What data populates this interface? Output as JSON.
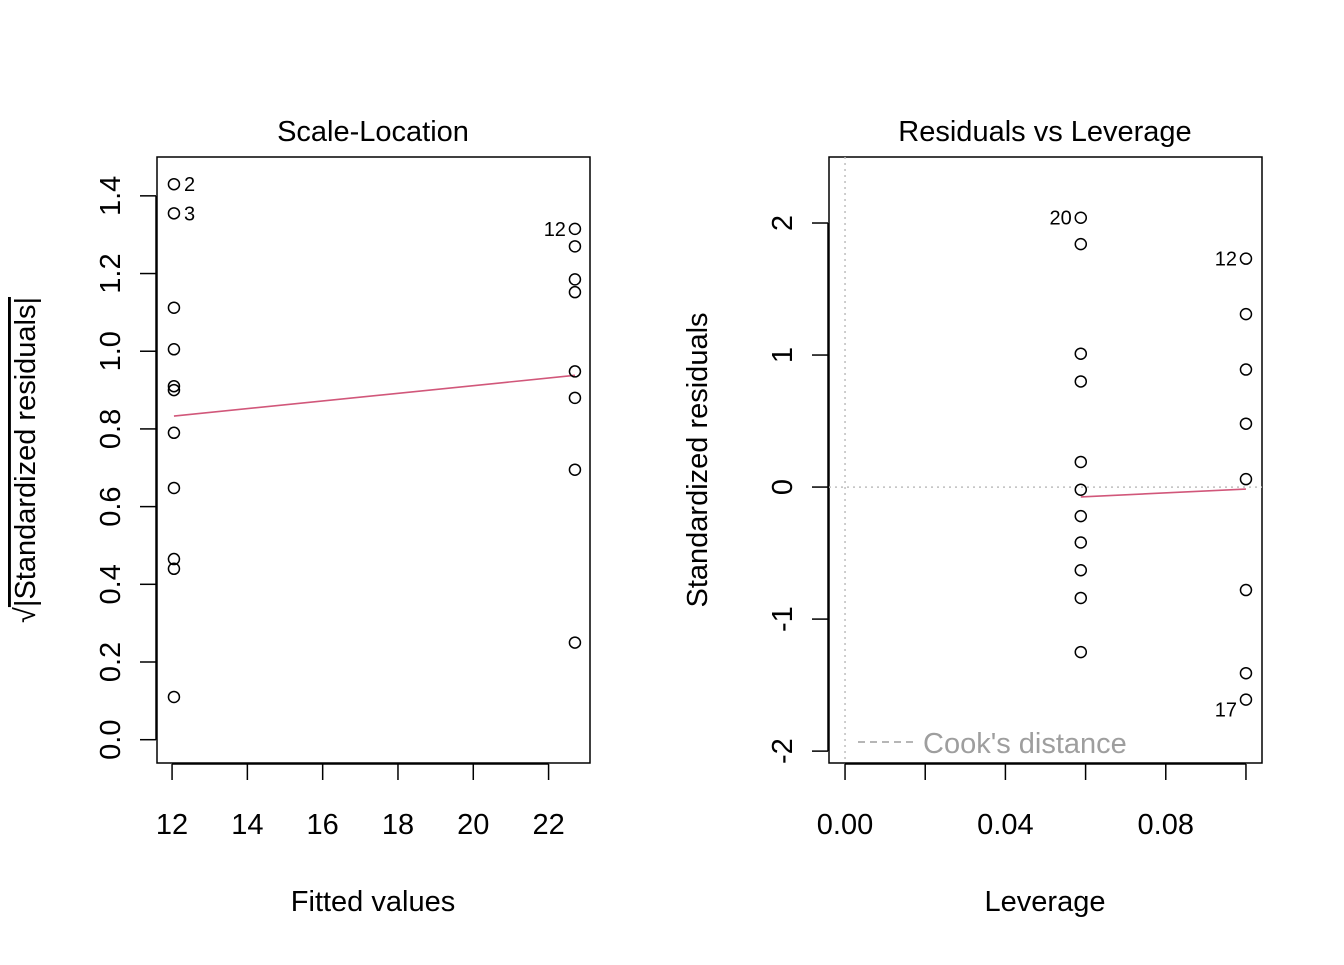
{
  "colors": {
    "smoother": "#d1577a",
    "reference": "#bebebe",
    "points": "#000000",
    "legend_text": "#9e9e9e"
  },
  "chart_data": [
    {
      "type": "scatter",
      "title": "Scale-Location",
      "xlabel": "Fitted values",
      "ylabel": "√|Standardized residuals|",
      "ylabel_radical": "√",
      "ylabel_body": "|Standardized residuals|",
      "xlim": [
        11.6,
        23.1
      ],
      "ylim": [
        -0.06,
        1.5
      ],
      "xticks": [
        12,
        14,
        16,
        18,
        20,
        22
      ],
      "xtick_labels": [
        "12",
        "14",
        "16",
        "18",
        "20",
        "22"
      ],
      "yticks": [
        0,
        0.2,
        0.4,
        0.6,
        0.8,
        1.0,
        1.2,
        1.4
      ],
      "ytick_labels": [
        "0.0",
        "0.2",
        "0.4",
        "0.6",
        "0.8",
        "1.0",
        "1.2",
        "1.4"
      ],
      "points": [
        {
          "x": 12.05,
          "y": 1.43,
          "label": "2"
        },
        {
          "x": 12.05,
          "y": 1.355,
          "label": "3"
        },
        {
          "x": 12.05,
          "y": 1.112
        },
        {
          "x": 12.05,
          "y": 1.005
        },
        {
          "x": 12.05,
          "y": 0.91
        },
        {
          "x": 12.05,
          "y": 0.9
        },
        {
          "x": 12.05,
          "y": 0.79
        },
        {
          "x": 12.05,
          "y": 0.648
        },
        {
          "x": 12.05,
          "y": 0.465
        },
        {
          "x": 12.05,
          "y": 0.44
        },
        {
          "x": 12.05,
          "y": 0.11
        },
        {
          "x": 22.7,
          "y": 1.315,
          "label": "12"
        },
        {
          "x": 22.7,
          "y": 1.27
        },
        {
          "x": 22.7,
          "y": 1.185
        },
        {
          "x": 22.7,
          "y": 1.152
        },
        {
          "x": 22.7,
          "y": 0.948
        },
        {
          "x": 22.7,
          "y": 0.88
        },
        {
          "x": 22.7,
          "y": 0.695
        },
        {
          "x": 22.7,
          "y": 0.25
        }
      ],
      "smoother": [
        [
          12.05,
          0.833
        ],
        [
          22.7,
          0.938
        ]
      ],
      "grid": false
    },
    {
      "type": "scatter",
      "title": "Residuals vs Leverage",
      "xlabel": "Leverage",
      "ylabel": "Standardized residuals",
      "xlim": [
        -0.004,
        0.104
      ],
      "ylim": [
        -2.09,
        2.5
      ],
      "xticks": [
        0,
        0.02,
        0.04,
        0.06,
        0.08,
        0.1
      ],
      "xtick_labels": [
        "0.00",
        "",
        "0.04",
        "",
        "0.08",
        ""
      ],
      "yticks": [
        -2,
        -1,
        0,
        1,
        2
      ],
      "ytick_labels": [
        "-2",
        "-1",
        "0",
        "1",
        "2"
      ],
      "points": [
        {
          "x": 0.0588,
          "y": 2.04,
          "label": "20"
        },
        {
          "x": 0.0588,
          "y": 1.84
        },
        {
          "x": 0.0588,
          "y": 1.01
        },
        {
          "x": 0.0588,
          "y": 0.8
        },
        {
          "x": 0.0588,
          "y": 0.19
        },
        {
          "x": 0.0588,
          "y": -0.02
        },
        {
          "x": 0.0588,
          "y": -0.22
        },
        {
          "x": 0.0588,
          "y": -0.42
        },
        {
          "x": 0.0588,
          "y": -0.63
        },
        {
          "x": 0.0588,
          "y": -0.84
        },
        {
          "x": 0.0588,
          "y": -1.25
        },
        {
          "x": 0.1,
          "y": 1.73,
          "label": "12"
        },
        {
          "x": 0.1,
          "y": 1.31
        },
        {
          "x": 0.1,
          "y": 0.89
        },
        {
          "x": 0.1,
          "y": 0.48
        },
        {
          "x": 0.1,
          "y": 0.06
        },
        {
          "x": 0.1,
          "y": -0.78
        },
        {
          "x": 0.1,
          "y": -1.41
        },
        {
          "x": 0.1,
          "y": -1.61,
          "label": "17"
        }
      ],
      "smoother": [
        [
          0.0588,
          -0.075
        ],
        [
          0.1,
          -0.015
        ]
      ],
      "reference_lines": {
        "h": 0,
        "v": 0
      },
      "legend": {
        "label": "Cook's distance",
        "placement": "bottom-left",
        "line": "dashed"
      },
      "grid": false
    }
  ]
}
